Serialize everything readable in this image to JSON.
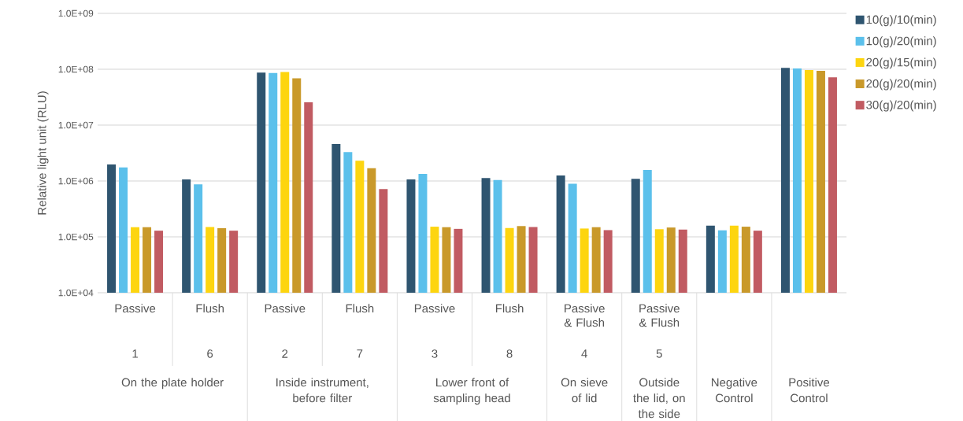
{
  "chart_data": {
    "type": "bar",
    "ylabel": "Relative light unit (RLU)",
    "categories": [
      "Passive",
      "Flush",
      "Passive",
      "Flush",
      "Passive",
      "Flush",
      "Passive & Flush",
      "Passive & Flush",
      null,
      null
    ],
    "series": [
      {
        "name": "10(g)/10(min)",
        "color": "#2f5570",
        "values": [
          1980000,
          1070000,
          87000000,
          4600000,
          1070000,
          1130000,
          1250000,
          1090000,
          159000,
          106000000
        ]
      },
      {
        "name": "10(g)/20(min)",
        "color": "#5bc0eb",
        "values": [
          1750000,
          870000,
          86000000,
          3300000,
          1340000,
          1040000,
          890000,
          1570000,
          131000,
          103000000
        ]
      },
      {
        "name": "20(g)/15(min)",
        "color": "#fdd50f",
        "values": [
          149000,
          150000,
          89000000,
          2300000,
          152000,
          144000,
          141000,
          137000,
          159000,
          97000000
        ]
      },
      {
        "name": "20(g)/20(min)",
        "color": "#c9992a",
        "values": [
          149000,
          143000,
          69000000,
          1700000,
          149000,
          156000,
          149000,
          147000,
          152000,
          94000000
        ]
      },
      {
        "name": "30(g)/20(min)",
        "color": "#c15b62",
        "values": [
          129000,
          129000,
          25600000,
          720000,
          139000,
          150000,
          132000,
          135000,
          129000,
          72000000
        ]
      }
    ],
    "log": true,
    "ylim": [
      10000,
      1000000000
    ],
    "yticks": [
      {
        "value": 10000,
        "label": "1.0E+04"
      },
      {
        "value": 100000,
        "label": "1.0E+05"
      },
      {
        "value": 1000000,
        "label": "1.0E+06"
      },
      {
        "value": 10000000,
        "label": "1.0E+07"
      },
      {
        "value": 100000000,
        "label": "1.0E+08"
      },
      {
        "value": 1000000000,
        "label": "1.0E+09"
      }
    ],
    "grid": "y",
    "legend": "top right",
    "annotations": [
      "1",
      "6",
      "2",
      "7",
      "3",
      "8",
      "4",
      "5",
      "On the plate holder",
      "Inside instrument, before filter",
      "Lower front of sampling head",
      "On sieve of lid",
      "Outside the lid, on the side",
      "Negative Control",
      "Positive Control"
    ]
  }
}
